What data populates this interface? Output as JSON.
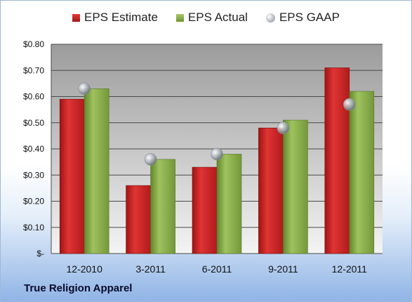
{
  "chart_data": {
    "type": "bar",
    "categories": [
      "12-2010",
      "3-2011",
      "6-2011",
      "9-2011",
      "12-2011"
    ],
    "series": [
      {
        "name": "EPS Estimate",
        "values": [
          0.59,
          0.26,
          0.33,
          0.48,
          0.71
        ],
        "color": "#c8201f"
      },
      {
        "name": "EPS Actual",
        "values": [
          0.63,
          0.36,
          0.38,
          0.51,
          0.62
        ],
        "color": "#86ab47"
      },
      {
        "name": "EPS GAAP",
        "values": [
          0.63,
          0.36,
          0.38,
          0.48,
          0.57
        ],
        "color": "#a9aeb6",
        "marker": "sphere"
      }
    ],
    "ylim": [
      0,
      0.8
    ],
    "yticks": [
      0,
      0.1,
      0.2,
      0.3,
      0.4,
      0.5,
      0.6,
      0.7,
      0.8
    ],
    "ytick_labels": [
      "$-",
      "$0.10",
      "$0.20",
      "$0.30",
      "$0.40",
      "$0.50",
      "$0.60",
      "$0.70",
      "$0.80"
    ],
    "grid": true,
    "legend_position": "top"
  },
  "legend": {
    "estimate_label": "EPS Estimate",
    "actual_label": "EPS Actual",
    "gaap_label": "EPS GAAP"
  },
  "footer": {
    "company": "True Religion Apparel"
  }
}
